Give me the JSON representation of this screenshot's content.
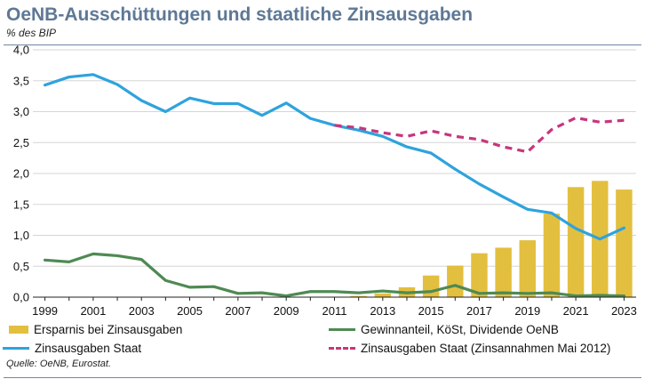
{
  "title": "OeNB-Ausschüttungen und staatliche Zinsausgaben",
  "subtitle": "% des BIP",
  "source": "Quelle: OeNB, Eurostat.",
  "chart_data": {
    "type": "bar+line",
    "ylim": [
      0,
      4
    ],
    "y_ticks": [
      "0,0",
      "0,5",
      "1,0",
      "1,5",
      "2,0",
      "2,5",
      "3,0",
      "3,5",
      "4,0"
    ],
    "y_tick_values": [
      0,
      0.5,
      1,
      1.5,
      2,
      2.5,
      3,
      3.5,
      4
    ],
    "x": [
      1999,
      2000,
      2001,
      2002,
      2003,
      2004,
      2005,
      2006,
      2007,
      2008,
      2009,
      2010,
      2011,
      2012,
      2013,
      2014,
      2015,
      2016,
      2017,
      2018,
      2019,
      2020,
      2021,
      2022,
      2023
    ],
    "x_tick_labels": [
      "1999",
      "2001",
      "2003",
      "2005",
      "2007",
      "2009",
      "2011",
      "2013",
      "2015",
      "2017",
      "2019",
      "2021",
      "2023"
    ],
    "x_tick_values": [
      1999,
      2001,
      2003,
      2005,
      2007,
      2009,
      2011,
      2013,
      2015,
      2017,
      2019,
      2021,
      2023
    ],
    "grid": true,
    "legend_position": "bottom",
    "series": [
      {
        "name": "Ersparnis bei Zinsausgaben",
        "type": "bar",
        "color": "#e3bf3f",
        "values": [
          null,
          null,
          null,
          null,
          null,
          null,
          null,
          null,
          null,
          null,
          null,
          null,
          null,
          0.02,
          0.06,
          0.16,
          0.35,
          0.51,
          0.71,
          0.8,
          0.92,
          1.35,
          1.78,
          1.88,
          1.74
        ]
      },
      {
        "name": "Gewinnanteil, KöSt, Dividende OeNB",
        "type": "line",
        "color": "#4e8a53",
        "dashed": false,
        "values": [
          0.6,
          0.57,
          0.7,
          0.67,
          0.61,
          0.27,
          0.16,
          0.17,
          0.06,
          0.07,
          0.02,
          0.09,
          0.09,
          0.07,
          0.1,
          0.07,
          0.09,
          0.19,
          0.06,
          0.07,
          0.06,
          0.07,
          0.02,
          0.03,
          0.02
        ]
      },
      {
        "name": "Zinsausgaben Staat",
        "type": "line",
        "color": "#2ea3dd",
        "dashed": false,
        "values": [
          3.43,
          3.56,
          3.6,
          3.44,
          3.18,
          3.0,
          3.22,
          3.13,
          3.13,
          2.94,
          3.14,
          2.89,
          2.78,
          2.7,
          2.6,
          2.43,
          2.33,
          2.07,
          1.83,
          1.62,
          1.42,
          1.36,
          1.11,
          0.94,
          1.12
        ]
      },
      {
        "name": "Zinsausgaben Staat (Zinsannahmen Mai 2012)",
        "type": "line",
        "color": "#c8357d",
        "dashed": true,
        "values": [
          null,
          null,
          null,
          null,
          null,
          null,
          null,
          null,
          null,
          null,
          null,
          null,
          2.78,
          2.74,
          2.66,
          2.6,
          2.69,
          2.6,
          2.55,
          2.43,
          2.35,
          2.71,
          2.9,
          2.83,
          2.86
        ]
      }
    ]
  }
}
